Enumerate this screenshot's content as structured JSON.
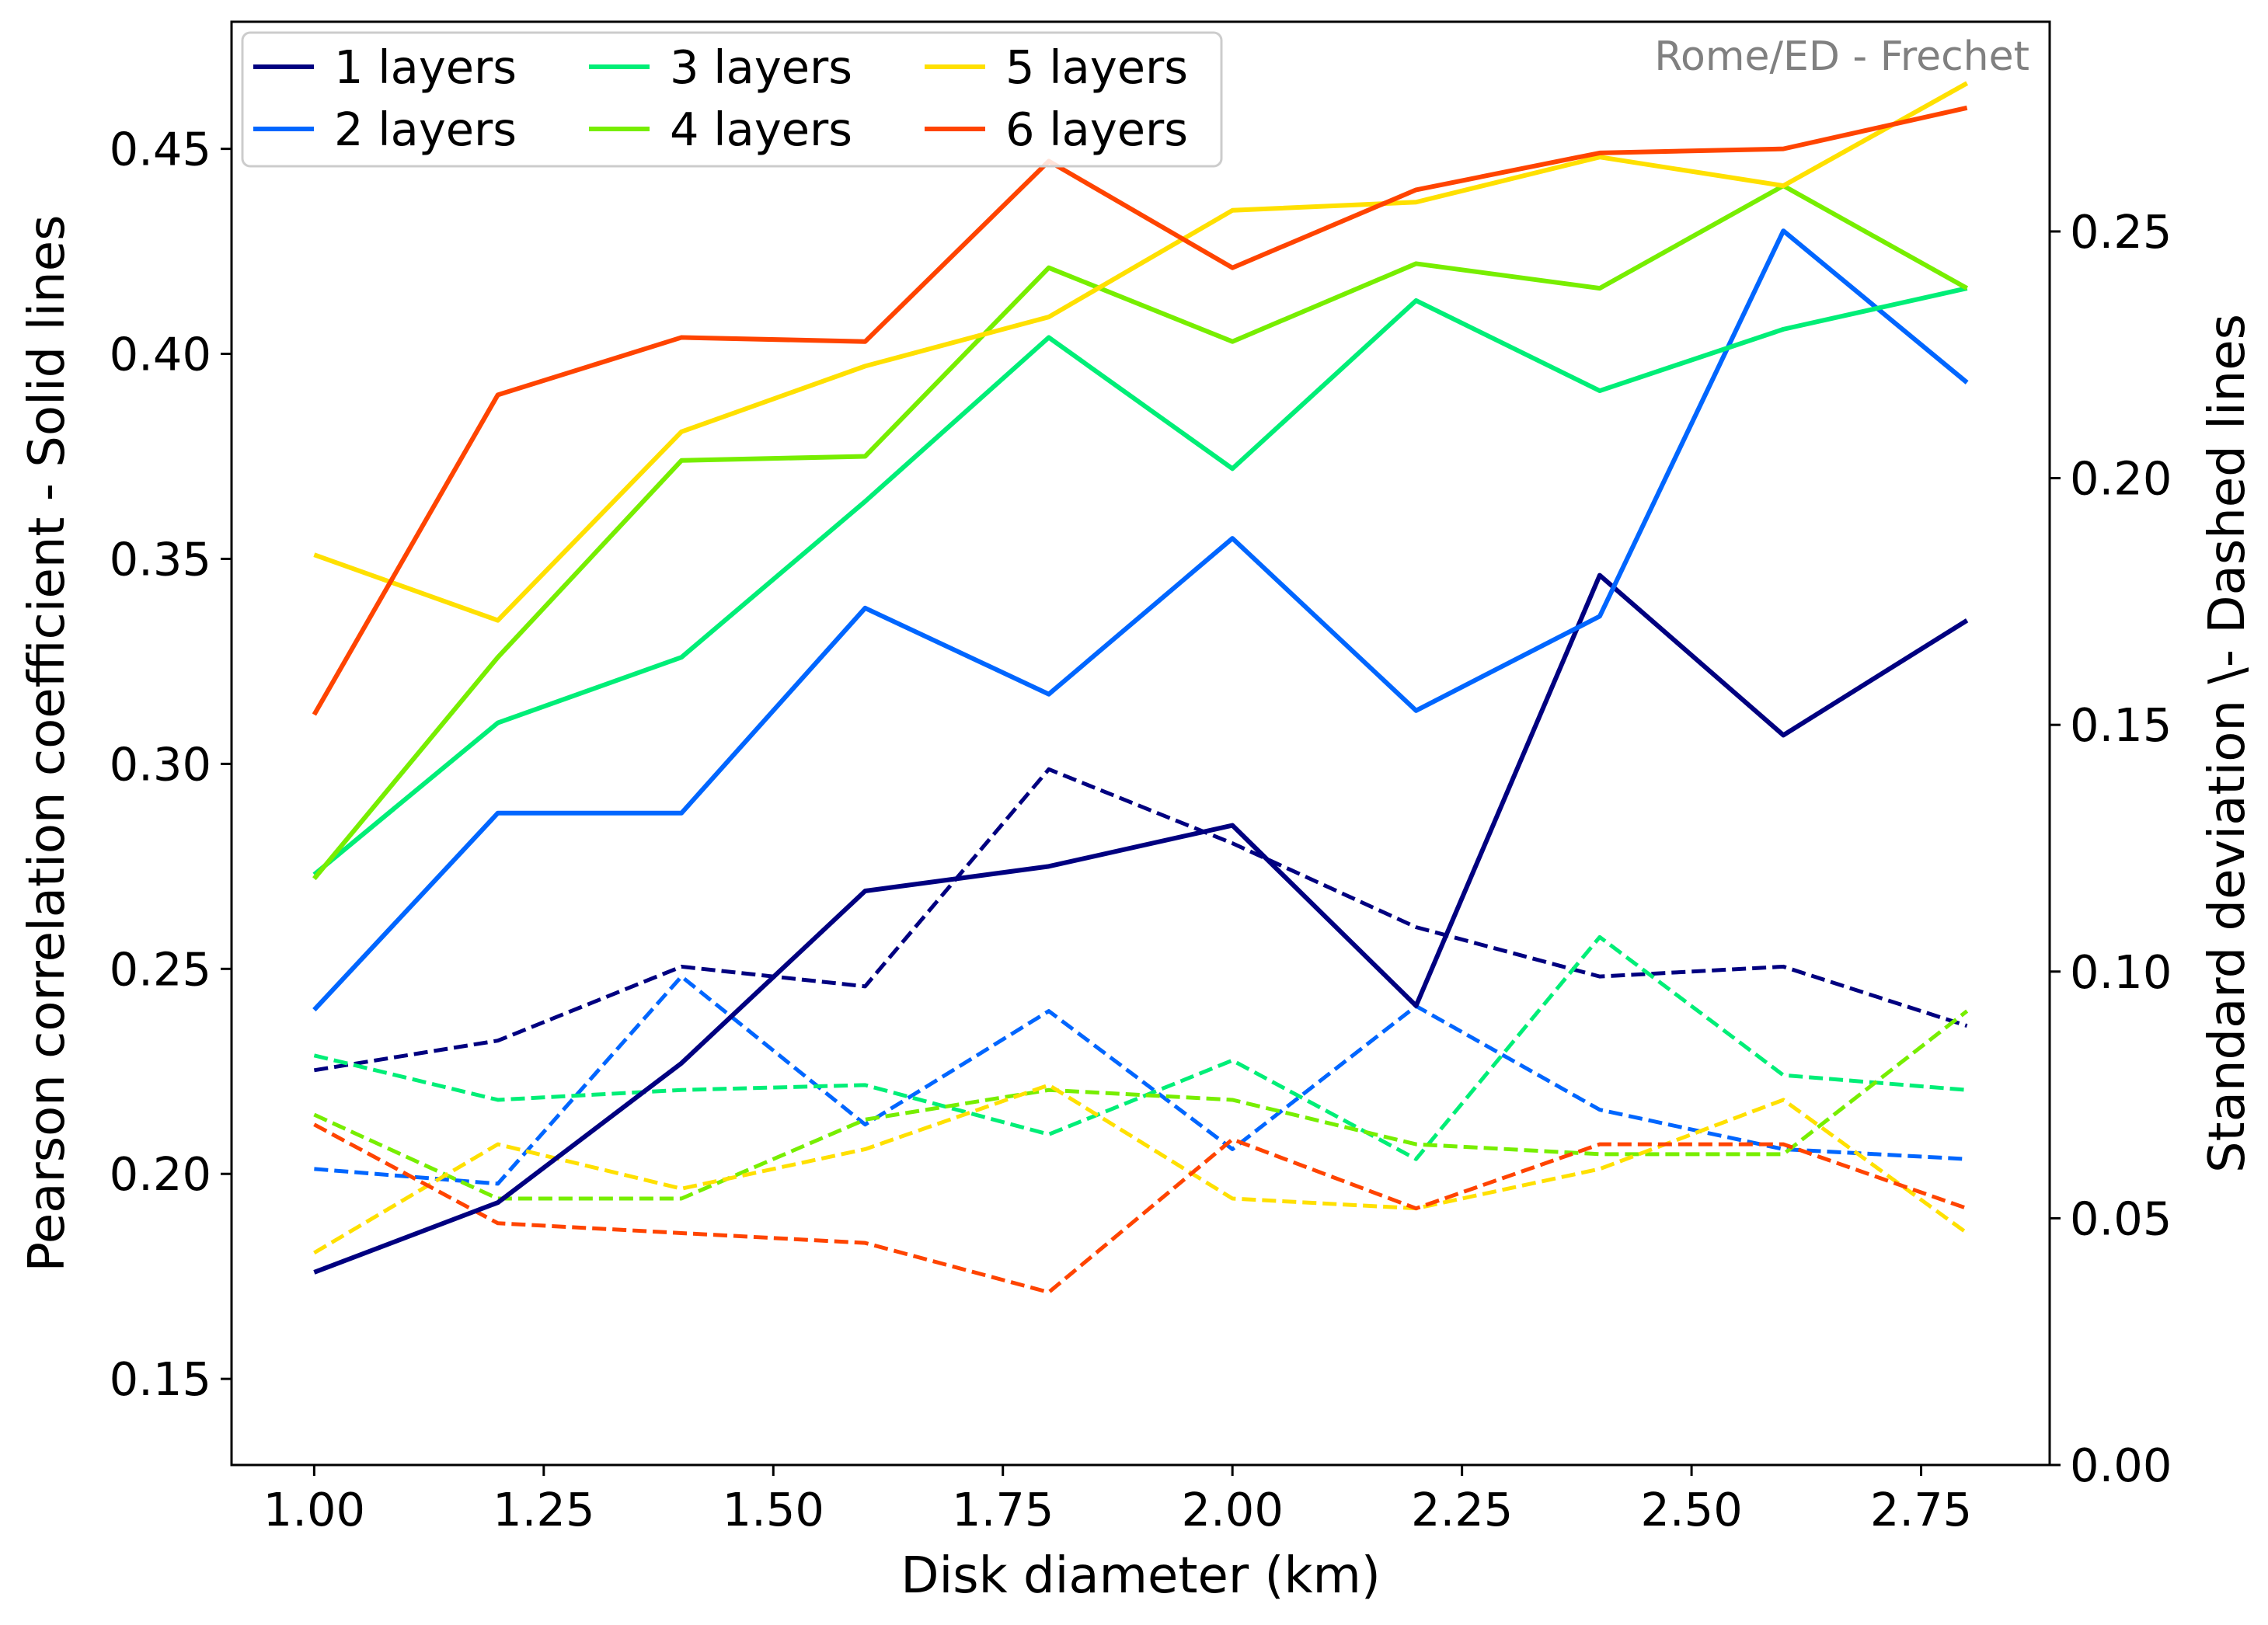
{
  "chart_data": {
    "type": "line",
    "annotation": "Rome/ED - Frechet",
    "xlabel": "Disk diameter (km)",
    "ylabel_left": "Pearson correlation coefficient - Solid lines",
    "ylabel_right": "Standard deviation \\- Dashed lines",
    "x": [
      1.0,
      1.2,
      1.4,
      1.6,
      1.8,
      2.0,
      2.2,
      2.4,
      2.6,
      2.8
    ],
    "xlim": [
      0.91,
      2.89
    ],
    "ylim_left": [
      0.129,
      0.481
    ],
    "ylim_right": [
      0.0,
      0.2925
    ],
    "x_ticks": [
      1.0,
      1.25,
      1.5,
      1.75,
      2.0,
      2.25,
      2.5,
      2.75
    ],
    "x_tick_labels": [
      "1.00",
      "1.25",
      "1.50",
      "1.75",
      "2.00",
      "2.25",
      "2.50",
      "2.75"
    ],
    "y_left_ticks": [
      0.15,
      0.2,
      0.25,
      0.3,
      0.35,
      0.4,
      0.45
    ],
    "y_left_tick_labels": [
      "0.15",
      "0.20",
      "0.25",
      "0.30",
      "0.35",
      "0.40",
      "0.45"
    ],
    "y_right_ticks": [
      0.0,
      0.05,
      0.1,
      0.15,
      0.2,
      0.25
    ],
    "y_right_tick_labels": [
      "0.00",
      "0.05",
      "0.10",
      "0.15",
      "0.20",
      "0.25"
    ],
    "grid": false,
    "legend_position": "top-left",
    "legend_columns": 3,
    "series": [
      {
        "name": "1 layers",
        "color": "#000080",
        "pearson": [
          0.176,
          0.193,
          0.227,
          0.269,
          0.275,
          0.285,
          0.241,
          0.346,
          0.307,
          0.335
        ],
        "std": [
          0.08,
          0.086,
          0.101,
          0.097,
          0.141,
          0.126,
          0.109,
          0.099,
          0.101,
          0.089
        ]
      },
      {
        "name": "2 layers",
        "color": "#0066ff",
        "pearson": [
          0.24,
          0.288,
          0.288,
          0.338,
          0.317,
          0.355,
          0.313,
          0.336,
          0.43,
          0.393
        ],
        "std": [
          0.06,
          0.057,
          0.099,
          0.069,
          0.092,
          0.064,
          0.093,
          0.072,
          0.064,
          0.062
        ]
      },
      {
        "name": "3 layers",
        "color": "#00ee77",
        "pearson": [
          0.273,
          0.31,
          0.326,
          0.364,
          0.404,
          0.372,
          0.413,
          0.391,
          0.406,
          0.416
        ],
        "std": [
          0.083,
          0.074,
          0.076,
          0.077,
          0.067,
          0.082,
          0.062,
          0.107,
          0.079,
          0.076
        ]
      },
      {
        "name": "4 layers",
        "color": "#77ee00",
        "pearson": [
          0.272,
          0.326,
          0.374,
          0.375,
          0.421,
          0.403,
          0.422,
          0.416,
          0.441,
          0.416
        ],
        "std": [
          0.071,
          0.054,
          0.054,
          0.07,
          0.076,
          0.074,
          0.065,
          0.063,
          0.063,
          0.092
        ]
      },
      {
        "name": "5 layers",
        "color": "#ffe000",
        "pearson": [
          0.351,
          0.335,
          0.381,
          0.397,
          0.409,
          0.435,
          0.437,
          0.448,
          0.441,
          0.466
        ],
        "std": [
          0.043,
          0.065,
          0.056,
          0.064,
          0.077,
          0.054,
          0.052,
          0.06,
          0.074,
          0.047
        ]
      },
      {
        "name": "6 layers",
        "color": "#ff4400",
        "pearson": [
          0.312,
          0.39,
          0.404,
          0.403,
          0.447,
          0.421,
          0.44,
          0.449,
          0.45,
          0.46
        ],
        "std": [
          0.069,
          0.049,
          0.047,
          0.045,
          0.035,
          0.066,
          0.052,
          0.065,
          0.065,
          0.052
        ]
      }
    ]
  }
}
